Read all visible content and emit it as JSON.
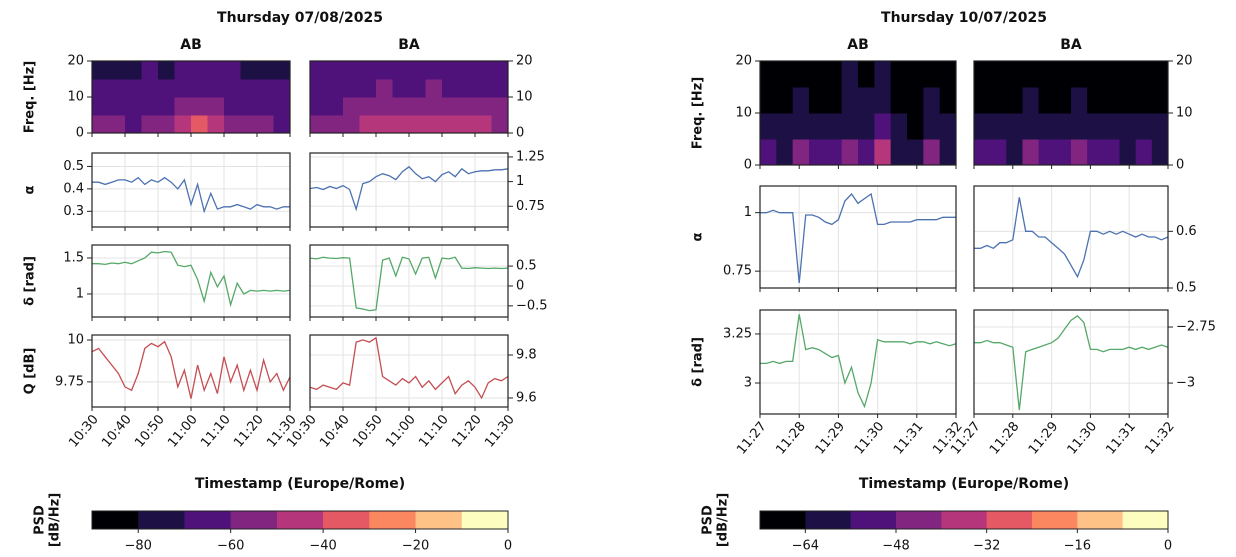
{
  "chart_data": [
    {
      "type": "line",
      "title": "Thursday 07/08/2025",
      "columns": [
        "AB",
        "BA"
      ],
      "x": [
        "10:30",
        "10:32",
        "10:34",
        "10:36",
        "10:38",
        "10:40",
        "10:42",
        "10:44",
        "10:46",
        "10:48",
        "10:50",
        "10:52",
        "10:54",
        "10:56",
        "10:58",
        "11:00",
        "11:02",
        "11:04",
        "11:06",
        "11:08",
        "11:10",
        "11:12",
        "11:14",
        "11:16",
        "11:18",
        "11:20",
        "11:22",
        "11:24",
        "11:26",
        "11:28",
        "11:30"
      ],
      "xlim": [
        "10:30",
        "11:30"
      ],
      "xticks": [
        "10:30",
        "10:40",
        "10:50",
        "11:00",
        "11:10",
        "11:20",
        "11:30"
      ],
      "xlabel": "Timestamp (Europe/Rome)",
      "rows": [
        {
          "type": "heatmap",
          "ylabel": "Freq. [Hz]",
          "panels": [
            {
              "ylim": [
                0,
                20
              ],
              "yticks": [
                0,
                10,
                20
              ],
              "values": [
                [
                  -58,
                  -60,
                  -62,
                  -55,
                  -58,
                  -45,
                  -40,
                  -42,
                  -55,
                  -58,
                  -60,
                  -62
                ],
                [
                  -66,
                  -68,
                  -68,
                  -65,
                  -66,
                  -60,
                  -55,
                  -58,
                  -64,
                  -66,
                  -67,
                  -68
                ],
                [
                  -70,
                  -70,
                  -70,
                  -68,
                  -70,
                  -64,
                  -62,
                  -63,
                  -68,
                  -70,
                  -70,
                  -70
                ],
                [
                  -72,
                  -72,
                  -72,
                  -70,
                  -72,
                  -67,
                  -65,
                  -66,
                  -70,
                  -72,
                  -72,
                  -72
                ]
              ]
            },
            {
              "ylim": [
                0,
                20
              ],
              "yticks": [
                0,
                10,
                20
              ],
              "values": [
                [
                  -55,
                  -55,
                  -52,
                  -45,
                  -42,
                  -48,
                  -45,
                  -42,
                  -45,
                  -50,
                  -48,
                  -52
                ],
                [
                  -62,
                  -62,
                  -60,
                  -56,
                  -55,
                  -58,
                  -56,
                  -55,
                  -57,
                  -60,
                  -58,
                  -60
                ],
                [
                  -65,
                  -65,
                  -64,
                  -62,
                  -60,
                  -63,
                  -61,
                  -60,
                  -62,
                  -64,
                  -63,
                  -64
                ],
                [
                  -67,
                  -67,
                  -66,
                  -64,
                  -63,
                  -65,
                  -64,
                  -63,
                  -64,
                  -66,
                  -65,
                  -66
                ]
              ]
            }
          ]
        },
        {
          "type": "line",
          "ylabel": "α",
          "color": "#4c72b0",
          "grid": true,
          "panels": [
            {
              "ylim": [
                0.23,
                0.56
              ],
              "yticks": [
                0.3,
                0.4,
                0.5
              ],
              "values": [
                0.43,
                0.43,
                0.42,
                0.43,
                0.44,
                0.44,
                0.43,
                0.45,
                0.42,
                0.44,
                0.43,
                0.45,
                0.43,
                0.4,
                0.44,
                0.33,
                0.42,
                0.3,
                0.38,
                0.31,
                0.32,
                0.32,
                0.33,
                0.32,
                0.31,
                0.33,
                0.32,
                0.32,
                0.31,
                0.32,
                0.32
              ]
            },
            {
              "ylim": [
                0.54,
                1.29
              ],
              "yticks": [
                0.75,
                1,
                1.25
              ],
              "values": [
                0.93,
                0.94,
                0.92,
                0.95,
                0.93,
                0.96,
                0.92,
                0.72,
                0.98,
                1.0,
                1.05,
                1.08,
                1.06,
                1.02,
                1.1,
                1.15,
                1.08,
                1.03,
                1.05,
                1.0,
                1.07,
                1.1,
                1.05,
                1.13,
                1.08,
                1.1,
                1.11,
                1.11,
                1.12,
                1.12,
                1.13
              ]
            }
          ]
        },
        {
          "type": "line",
          "ylabel": "δ [rad]",
          "color": "#55a868",
          "grid": true,
          "panels": [
            {
              "ylim": [
                0.68,
                1.68
              ],
              "yticks": [
                1,
                1.5
              ],
              "values": [
                1.42,
                1.42,
                1.41,
                1.43,
                1.42,
                1.44,
                1.42,
                1.46,
                1.5,
                1.58,
                1.57,
                1.59,
                1.58,
                1.4,
                1.38,
                1.4,
                1.2,
                0.9,
                1.3,
                1.1,
                1.25,
                0.85,
                1.15,
                1.0,
                1.05,
                1.04,
                1.05,
                1.04,
                1.05,
                1.04,
                1.05
              ]
            },
            {
              "ylim": [
                -0.78,
                1.03
              ],
              "yticks": [
                {
                  "value": -0.5,
                  "label": "−0.5"
                },
                0,
                0.5
              ],
              "values": [
                0.7,
                0.68,
                0.72,
                0.7,
                0.69,
                0.71,
                0.7,
                -0.55,
                -0.58,
                -0.62,
                -0.6,
                0.65,
                0.7,
                0.25,
                0.72,
                0.68,
                0.3,
                0.7,
                0.72,
                0.2,
                0.7,
                0.68,
                0.72,
                0.45,
                0.44,
                0.46,
                0.45,
                0.44,
                0.45,
                0.44,
                0.45
              ]
            }
          ]
        },
        {
          "type": "line",
          "ylabel": "Q [dB]",
          "color": "#c44e52",
          "grid": true,
          "panels": [
            {
              "ylim": [
                9.6,
                10.03
              ],
              "yticks": [
                9.75,
                10
              ],
              "values": [
                9.93,
                9.95,
                9.9,
                9.85,
                9.8,
                9.72,
                9.7,
                9.8,
                9.95,
                9.98,
                9.96,
                9.99,
                9.9,
                9.72,
                9.82,
                9.65,
                9.85,
                9.7,
                9.8,
                9.68,
                9.9,
                9.75,
                9.85,
                9.7,
                9.82,
                9.7,
                9.88,
                9.75,
                9.8,
                9.7,
                9.78
              ]
            },
            {
              "ylim": [
                9.558,
                9.893
              ],
              "yticks": [
                9.6,
                9.8
              ],
              "values": [
                9.65,
                9.64,
                9.66,
                9.65,
                9.64,
                9.67,
                9.66,
                9.86,
                9.87,
                9.86,
                9.88,
                9.7,
                9.68,
                9.66,
                9.69,
                9.67,
                9.7,
                9.65,
                9.68,
                9.64,
                9.67,
                9.7,
                9.62,
                9.66,
                9.68,
                9.65,
                9.6,
                9.67,
                9.69,
                9.68,
                9.7
              ]
            }
          ]
        }
      ],
      "colorbar": {
        "label": [
          "PSD",
          "[dB/Hz]"
        ],
        "lim": [
          -90,
          0
        ],
        "ticks": [
          {
            "value": -80,
            "label": "−80"
          },
          {
            "value": -60,
            "label": "−60"
          },
          {
            "value": -40,
            "label": "−40"
          },
          {
            "value": -20,
            "label": "−20"
          },
          0
        ],
        "colors": [
          "#000004",
          "#1c1044",
          "#4f127b",
          "#812581",
          "#b5367a",
          "#e55964",
          "#fb8761",
          "#fec287",
          "#fcfdbf"
        ]
      }
    },
    {
      "type": "line",
      "title": "Thursday 10/07/2025",
      "columns": [
        "AB",
        "BA"
      ],
      "x": [
        "11:27:00",
        "11:27:10",
        "11:27:20",
        "11:27:30",
        "11:27:40",
        "11:27:50",
        "11:28:00",
        "11:28:10",
        "11:28:20",
        "11:28:30",
        "11:28:40",
        "11:28:50",
        "11:29:00",
        "11:29:10",
        "11:29:20",
        "11:29:30",
        "11:29:40",
        "11:29:50",
        "11:30:00",
        "11:30:10",
        "11:30:20",
        "11:30:30",
        "11:30:40",
        "11:30:50",
        "11:31:00",
        "11:31:10",
        "11:31:20",
        "11:31:30",
        "11:31:40",
        "11:31:50",
        "11:32:00"
      ],
      "xlim": [
        "11:27",
        "11:32"
      ],
      "xticks": [
        "11:27",
        "11:28",
        "11:29",
        "11:30",
        "11:31",
        "11:32"
      ],
      "xlabel": "Timestamp (Europe/Rome)",
      "rows": [
        {
          "type": "heatmap",
          "ylabel": "Freq. [Hz]",
          "panels": [
            {
              "ylim": [
                0,
                20
              ],
              "yticks": [
                0,
                10,
                20
              ],
              "values": [
                [
                  -52,
                  -58,
                  -45,
                  -50,
                  -55,
                  -42,
                  -55,
                  -40,
                  -58,
                  -60,
                  -48,
                  -58
                ],
                [
                  -62,
                  -64,
                  -60,
                  -62,
                  -63,
                  -58,
                  -62,
                  -56,
                  -64,
                  -65,
                  -60,
                  -64
                ],
                [
                  -65,
                  -66,
                  -64,
                  -65,
                  -66,
                  -62,
                  -64,
                  -60,
                  -66,
                  -67,
                  -64,
                  -66
                ],
                [
                  -66,
                  -67,
                  -66,
                  -66,
                  -67,
                  -64,
                  -66,
                  -63,
                  -67,
                  -68,
                  -66,
                  -67
                ]
              ]
            },
            {
              "ylim": [
                0,
                20
              ],
              "yticks": [
                0,
                10,
                20
              ],
              "values": [
                [
                  -55,
                  -52,
                  -58,
                  -44,
                  -50,
                  -56,
                  -48,
                  -55,
                  -52,
                  -58,
                  -55,
                  -58
                ],
                [
                  -63,
                  -62,
                  -64,
                  -58,
                  -62,
                  -64,
                  -60,
                  -63,
                  -62,
                  -64,
                  -63,
                  -64
                ],
                [
                  -66,
                  -65,
                  -66,
                  -63,
                  -65,
                  -66,
                  -64,
                  -65,
                  -65,
                  -66,
                  -66,
                  -66
                ],
                [
                  -67,
                  -67,
                  -67,
                  -66,
                  -67,
                  -67,
                  -66,
                  -67,
                  -67,
                  -67,
                  -67,
                  -67
                ]
              ]
            }
          ]
        },
        {
          "type": "line",
          "ylabel": "α",
          "color": "#4c72b0",
          "grid": true,
          "panels": [
            {
              "ylim": [
                0.678,
                1.114
              ],
              "yticks": [
                0.75,
                1
              ],
              "values": [
                1.0,
                1.0,
                1.01,
                1.0,
                1.0,
                1.0,
                0.7,
                0.99,
                0.99,
                0.98,
                0.96,
                0.95,
                0.97,
                1.05,
                1.08,
                1.04,
                1.06,
                1.08,
                0.95,
                0.95,
                0.96,
                0.96,
                0.96,
                0.96,
                0.97,
                0.97,
                0.97,
                0.97,
                0.98,
                0.98,
                0.98
              ]
            },
            {
              "ylim": [
                0.5,
                0.68
              ],
              "yticks": [
                0.5,
                0.6
              ],
              "values": [
                0.57,
                0.57,
                0.575,
                0.57,
                0.58,
                0.58,
                0.585,
                0.66,
                0.6,
                0.6,
                0.59,
                0.59,
                0.58,
                0.57,
                0.56,
                0.54,
                0.52,
                0.55,
                0.6,
                0.6,
                0.595,
                0.6,
                0.595,
                0.6,
                0.595,
                0.59,
                0.595,
                0.59,
                0.59,
                0.585,
                0.59
              ]
            }
          ]
        },
        {
          "type": "line",
          "ylabel": "δ [rad]",
          "color": "#55a868",
          "grid": true,
          "panels": [
            {
              "ylim": [
                2.842,
                3.372
              ],
              "yticks": [
                3,
                3.25
              ],
              "values": [
                3.1,
                3.1,
                3.11,
                3.1,
                3.11,
                3.11,
                3.35,
                3.17,
                3.18,
                3.17,
                3.15,
                3.13,
                3.14,
                3.0,
                3.08,
                2.95,
                2.88,
                3.0,
                3.22,
                3.21,
                3.21,
                3.21,
                3.21,
                3.2,
                3.21,
                3.21,
                3.2,
                3.21,
                3.2,
                3.19,
                3.2
              ]
            },
            {
              "ylim": [
                -3.138,
                -2.674
              ],
              "yticks": [
                {
                  "value": -3,
                  "label": "−3"
                },
                {
                  "value": -2.75,
                  "label": "−2.75"
                }
              ],
              "values": [
                -2.82,
                -2.82,
                -2.81,
                -2.82,
                -2.82,
                -2.83,
                -2.84,
                -3.12,
                -2.86,
                -2.85,
                -2.84,
                -2.83,
                -2.82,
                -2.8,
                -2.76,
                -2.72,
                -2.7,
                -2.73,
                -2.85,
                -2.85,
                -2.86,
                -2.85,
                -2.85,
                -2.85,
                -2.84,
                -2.85,
                -2.84,
                -2.85,
                -2.84,
                -2.83,
                -2.84
              ]
            }
          ]
        }
      ],
      "colorbar": {
        "label": [
          "PSD",
          "[dB/Hz]"
        ],
        "lim": [
          -72,
          0
        ],
        "ticks": [
          {
            "value": -64,
            "label": "−64"
          },
          {
            "value": -48,
            "label": "−48"
          },
          {
            "value": -32,
            "label": "−32"
          },
          {
            "value": -16,
            "label": "−16"
          },
          0
        ],
        "colors": [
          "#000004",
          "#1c1044",
          "#4f127b",
          "#812581",
          "#b5367a",
          "#e55964",
          "#fb8761",
          "#fec287",
          "#fcfdbf"
        ]
      }
    }
  ]
}
